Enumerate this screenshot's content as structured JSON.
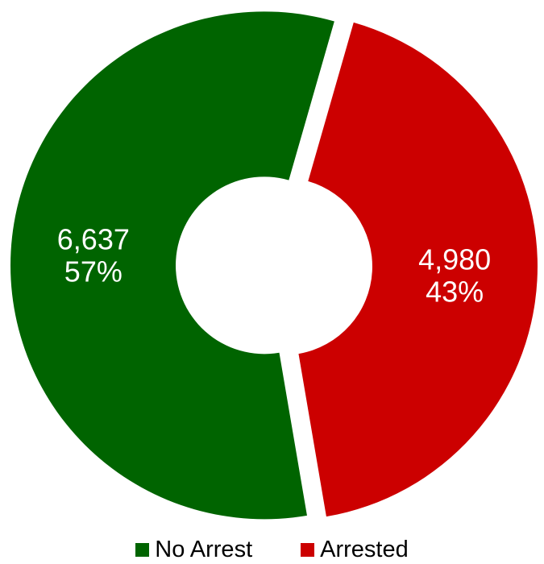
{
  "chart_data": {
    "type": "pie",
    "donut": true,
    "exploded": true,
    "legend_position": "bottom",
    "series": [
      {
        "name": "No Arrest",
        "value": 6637,
        "value_label": "6,637",
        "percent_label": "57%",
        "color": "#006400"
      },
      {
        "name": "Arrested",
        "value": 4980,
        "value_label": "4,980",
        "percent_label": "43%",
        "color": "#cc0000"
      }
    ]
  }
}
